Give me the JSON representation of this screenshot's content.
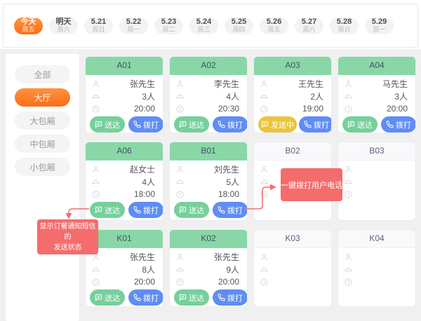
{
  "topbar": {
    "date_tabs": [
      {
        "label": "今天",
        "sub": "周五",
        "active": true
      },
      {
        "label": "明天",
        "sub": "周六",
        "active": false
      },
      {
        "label": "5.21",
        "sub": "周日",
        "active": false
      },
      {
        "label": "5.22",
        "sub": "周一",
        "active": false
      },
      {
        "label": "5.23",
        "sub": "周二",
        "active": false
      },
      {
        "label": "5.24",
        "sub": "周三",
        "active": false
      },
      {
        "label": "5.25",
        "sub": "周四",
        "active": false
      },
      {
        "label": "5.26",
        "sub": "周五",
        "active": false
      },
      {
        "label": "5.27",
        "sub": "周六",
        "active": false
      },
      {
        "label": "5.28",
        "sub": "周日",
        "active": false
      },
      {
        "label": "5.29",
        "sub": "周一",
        "active": false
      }
    ]
  },
  "sidebar": {
    "items": [
      {
        "label": "全部",
        "active": false
      },
      {
        "label": "大厅",
        "active": true
      },
      {
        "label": "大包厢",
        "active": false
      },
      {
        "label": "中包厢",
        "active": false
      },
      {
        "label": "小包厢",
        "active": false
      }
    ]
  },
  "tables": [
    {
      "id": "A01",
      "occupied": true,
      "guest": "张先生",
      "count": "3人",
      "time": "20:00",
      "sms_label": "送达",
      "sms_state": "delivered",
      "call_label": "拨打"
    },
    {
      "id": "A02",
      "occupied": true,
      "guest": "李先生",
      "count": "4人",
      "time": "20:30",
      "sms_label": "送达",
      "sms_state": "delivered",
      "call_label": "拨打"
    },
    {
      "id": "A03",
      "occupied": true,
      "guest": "王先生",
      "count": "2人",
      "time": "19:00",
      "sms_label": "发送中",
      "sms_state": "sending",
      "call_label": "拨打"
    },
    {
      "id": "A04",
      "occupied": true,
      "guest": "马先生",
      "count": "3人",
      "time": "20:00",
      "sms_label": "送达",
      "sms_state": "delivered",
      "call_label": "拨打"
    },
    {
      "id": "A06",
      "occupied": true,
      "guest": "赵女士",
      "count": "4人",
      "time": "18:00",
      "sms_label": "送达",
      "sms_state": "delivered",
      "call_label": "拨打"
    },
    {
      "id": "B01",
      "occupied": true,
      "guest": "刘先生",
      "count": "5人",
      "time": "18:00",
      "sms_label": "送达",
      "sms_state": "delivered",
      "call_label": "拨打"
    },
    {
      "id": "B02",
      "occupied": false
    },
    {
      "id": "B03",
      "occupied": false
    },
    {
      "id": "K01",
      "occupied": true,
      "guest": "张先生",
      "count": "8人",
      "time": "20:00",
      "sms_label": "送达",
      "sms_state": "delivered",
      "call_label": "拨打"
    },
    {
      "id": "K02",
      "occupied": true,
      "guest": "张先生",
      "count": "9人",
      "time": "20:00",
      "sms_label": "送达",
      "sms_state": "delivered",
      "call_label": "拨打"
    },
    {
      "id": "K03",
      "occupied": false
    },
    {
      "id": "K04",
      "occupied": false
    }
  ],
  "annotations": {
    "call_tip": {
      "text": "一键拨打用户电话"
    },
    "sms_tip": {
      "line1": "显示订餐通知短信的",
      "line2": "发送状态"
    }
  },
  "icons": {
    "person-icon": "outline person (guest name row)",
    "cloche-icon": "food cover dome (party size row)",
    "clock-icon": "clock (reservation time row)",
    "sms-icon": "message bubble (SMS status button)",
    "phone-icon": "phone handset (call button)"
  },
  "colors": {
    "accent_orange": "#fd7b1e",
    "header_green": "#89d7a6",
    "button_green": "#76d09b",
    "button_blue": "#5f8df5",
    "button_yellow": "#e9c53e",
    "annotation_red": "#f56c6c",
    "background_gray": "#f0f0f1"
  }
}
